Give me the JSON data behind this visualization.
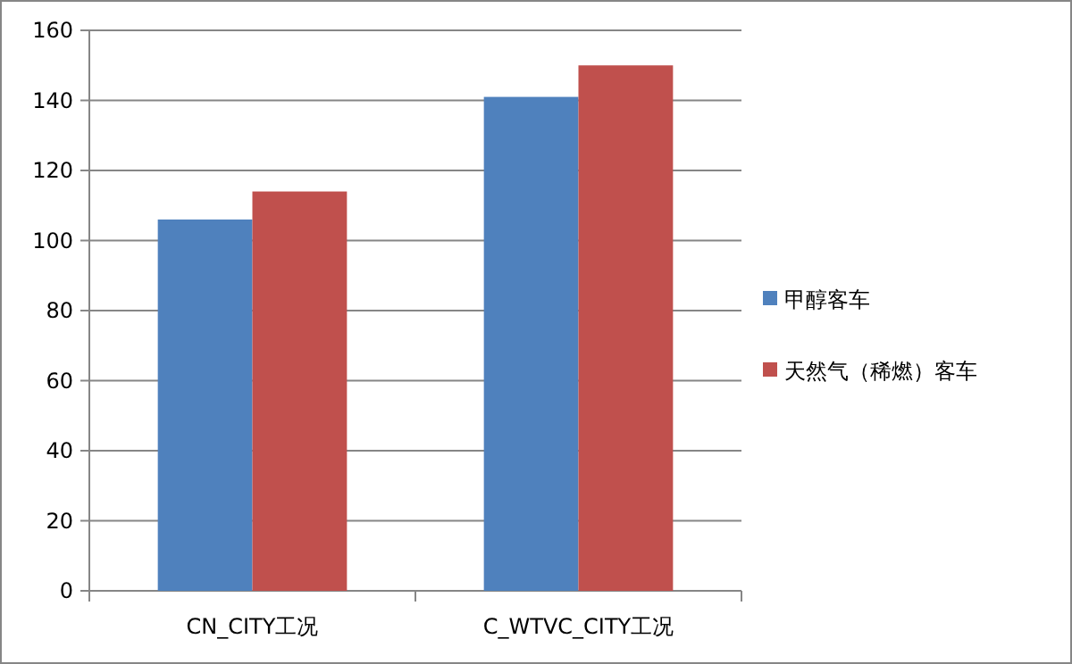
{
  "chart_data": {
    "type": "bar",
    "categories": [
      "CN_CITY工况",
      "C_WTVC_CITY工况"
    ],
    "series": [
      {
        "name": "甲醇客车",
        "color": "#4f81bd",
        "values": [
          106,
          141
        ]
      },
      {
        "name": "天然气（稀燃）客车",
        "color": "#c0504d",
        "values": [
          114,
          150
        ]
      }
    ],
    "ylim": [
      0,
      160
    ],
    "yticks": [
      0,
      20,
      40,
      60,
      80,
      100,
      120,
      140,
      160
    ],
    "grid": "y",
    "legend": "right"
  }
}
